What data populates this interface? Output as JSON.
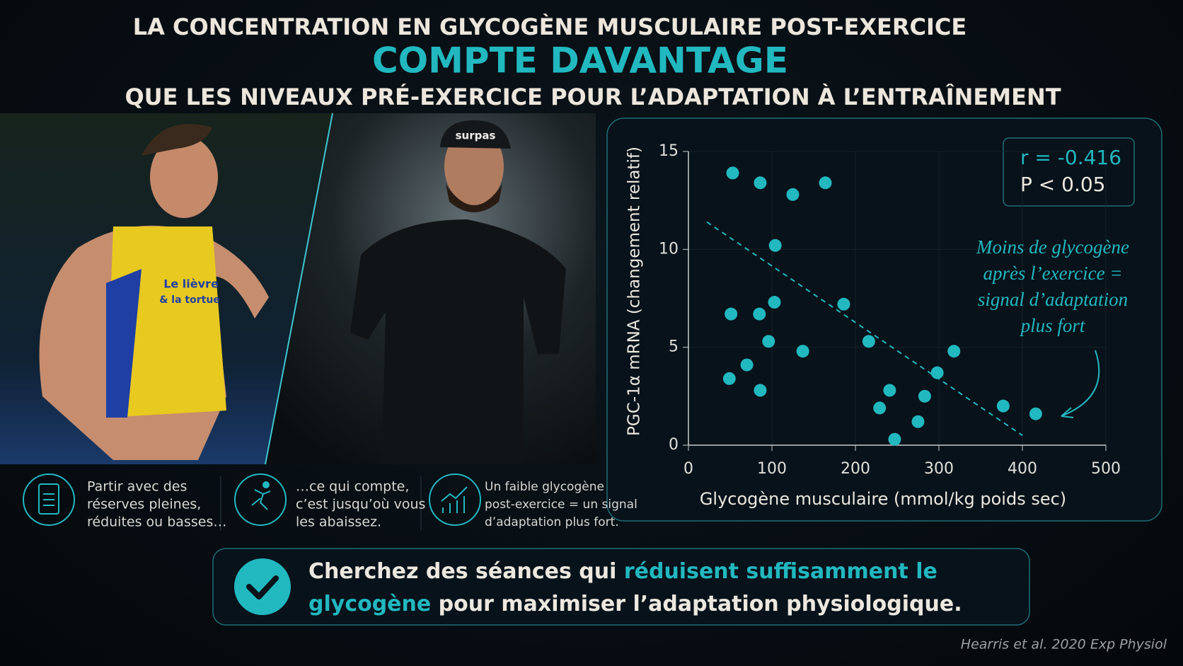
{
  "header": {
    "line1": "LA CONCENTRATION EN GLYCOGÈNE MUSCULAIRE POST-EXERCICE",
    "line2": "COMPTE DAVANTAGE",
    "line3": "QUE LES NIVEAUX PRÉ-EXERCICE POUR L’ADAPTATION À L’ENTRAÎNEMENT"
  },
  "photos": {
    "left_shirt": [
      "Le lièvre",
      "& la tortue"
    ],
    "right_cap": "surpas"
  },
  "chart_data": {
    "type": "scatter",
    "color": "#22b8c0",
    "x": [
      53,
      86,
      125,
      164,
      104,
      51,
      85,
      103,
      186,
      96,
      137,
      216,
      318,
      70,
      49,
      86,
      241,
      229,
      283,
      298,
      275,
      247,
      377,
      416
    ],
    "y": [
      13.9,
      13.4,
      12.8,
      13.4,
      10.2,
      6.7,
      6.7,
      7.3,
      7.2,
      5.3,
      4.8,
      5.3,
      4.8,
      4.1,
      3.4,
      2.8,
      2.8,
      1.9,
      2.5,
      3.7,
      1.2,
      0.3,
      2.0,
      1.6
    ],
    "trendline": {
      "x": [
        22,
        400
      ],
      "y": [
        11.4,
        0.5
      ]
    },
    "xlim": [
      0,
      500
    ],
    "ylim": [
      0,
      15
    ],
    "xticks": [
      0,
      100,
      200,
      300,
      400,
      500
    ],
    "yticks": [
      0,
      5,
      10,
      15
    ],
    "grid": true,
    "x_label": "Glycogène musculaire (mmol/kg poids sec)",
    "y_label": "PGC-1α mRNA (changement relatif)",
    "stats": [
      "r = -0.416",
      "P < 0.05"
    ],
    "annotation": [
      "Moins de glycogène",
      "après l’exercice =",
      "signal d’adaptation",
      "plus fort"
    ]
  },
  "cards": [
    {
      "lines": [
        "Partir avec des",
        "réserves pleines,",
        "réduites ou basses…"
      ]
    },
    {
      "lines": [
        "…ce qui compte,",
        "c’est jusqu’où vous",
        "les abaissez."
      ]
    },
    {
      "lines": [
        "Un faible glycogène",
        "post-exercice = un signal",
        "d’adaptation plus fort."
      ]
    }
  ],
  "banner": {
    "part1": "Cherchez des séances qui ",
    "highlight": "réduisent suffisamment le glycogène",
    "part2": " pour maximiser l’adaptation physiologique."
  },
  "citation": "Hearris et al. 2020 Exp Physiol"
}
